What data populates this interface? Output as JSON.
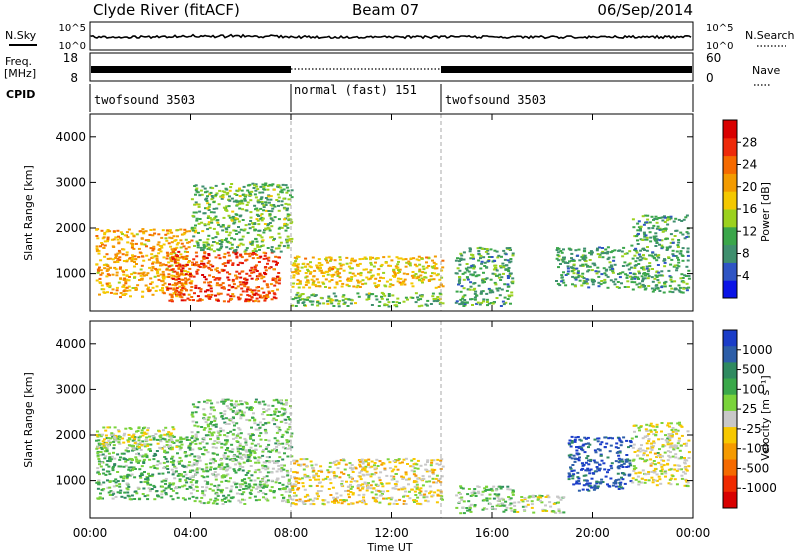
{
  "header": {
    "station": "Clyde River (fitACF)",
    "beam": "Beam 07",
    "date": "06/Sep/2014"
  },
  "top_panels": {
    "nsky_label": "N.Sky",
    "nsky_ticks": [
      "10^5",
      "10^0"
    ],
    "nsearch_label": "N.Search",
    "nsearch_ticks": [
      "10^5",
      "10^0"
    ],
    "freq_label": "Freq.",
    "freq_unit": "[MHz]",
    "freq_ticks": [
      "18",
      "8"
    ],
    "nave_label": "Nave",
    "nave_ticks": [
      "60",
      "0"
    ],
    "cpid_label": "CPID",
    "cpid_segments": [
      {
        "name": "twofsound 3503",
        "start_hour": 0,
        "end_hour": 8
      },
      {
        "name": "normal (fast) 151",
        "start_hour": 8,
        "end_hour": 14
      },
      {
        "name": "twofsound 3503",
        "start_hour": 14,
        "end_hour": 24
      }
    ]
  },
  "xaxis": {
    "label": "Time UT",
    "ticks": [
      "00:00",
      "04:00",
      "08:00",
      "12:00",
      "16:00",
      "20:00",
      "00:00"
    ]
  },
  "range_axis": {
    "label": "Slant Range [km]",
    "ticks": [
      "1000",
      "2000",
      "3000",
      "4000"
    ]
  },
  "power_scale": {
    "label": "Power [dB]",
    "ticks": [
      "4",
      "8",
      "12",
      "16",
      "20",
      "24",
      "28"
    ],
    "colors": [
      "#0a14e6",
      "#2f55c4",
      "#3f8f6e",
      "#3aa64a",
      "#9bd11e",
      "#f4c800",
      "#f39b00",
      "#f56a00",
      "#ee2a0a",
      "#d90000"
    ]
  },
  "velocity_scale": {
    "label": "Velocity [m s⁻¹]",
    "ticks": [
      "1000",
      "500",
      "100",
      "25",
      "-25",
      "-100",
      "-500",
      "-1000"
    ],
    "colors": [
      "#1b3dc8",
      "#2d5ea8",
      "#2f8a60",
      "#3aa84a",
      "#7ad33a",
      "#c8c8c8",
      "#f7c800",
      "#f59a00",
      "#f56a00",
      "#ef2a00",
      "#d80000"
    ]
  },
  "chart_data": [
    {
      "type": "heatmap",
      "title": "Power",
      "xlabel": "Time UT",
      "ylabel": "Slant Range [km]",
      "xlim": [
        0,
        24
      ],
      "ylim": [
        180,
        4500
      ],
      "colorbar": {
        "label": "Power [dB]",
        "range": [
          0,
          32
        ]
      },
      "regions": [
        {
          "t0": 0.2,
          "t1": 4.0,
          "r0": 500,
          "r1": 2000,
          "power": 20
        },
        {
          "t0": 3.0,
          "t1": 7.5,
          "r0": 400,
          "r1": 1500,
          "power": 26
        },
        {
          "t0": 4.0,
          "t1": 8.0,
          "r0": 1500,
          "r1": 3000,
          "power": 12
        },
        {
          "t0": 8.0,
          "t1": 14.0,
          "r0": 700,
          "r1": 1400,
          "power": 18
        },
        {
          "t0": 8.0,
          "t1": 14.0,
          "r0": 300,
          "r1": 600,
          "power": 12
        },
        {
          "t0": 14.5,
          "t1": 16.8,
          "r0": 300,
          "r1": 1600,
          "power": 10
        },
        {
          "t0": 18.5,
          "t1": 21.5,
          "r0": 700,
          "r1": 1600,
          "power": 10
        },
        {
          "t0": 21.5,
          "t1": 23.8,
          "r0": 600,
          "r1": 2300,
          "power": 10
        }
      ]
    },
    {
      "type": "heatmap",
      "title": "Velocity",
      "xlabel": "Time UT",
      "ylabel": "Slant Range [km]",
      "xlim": [
        0,
        24
      ],
      "ylim": [
        180,
        4500
      ],
      "colorbar": {
        "label": "Velocity [m s⁻¹]",
        "range": [
          -1000,
          1000
        ]
      },
      "regions": [
        {
          "t0": 0.2,
          "t1": 4.0,
          "r0": 600,
          "r1": 2000,
          "velocity": 300
        },
        {
          "t0": 0.2,
          "t1": 3.5,
          "r0": 1700,
          "r1": 2200,
          "velocity": 0
        },
        {
          "t0": 4.0,
          "t1": 8.0,
          "r0": 500,
          "r1": 2800,
          "velocity": 200
        },
        {
          "t0": 8.0,
          "t1": 14.0,
          "r0": 500,
          "r1": 1500,
          "velocity": -100
        },
        {
          "t0": 14.5,
          "t1": 16.8,
          "r0": 300,
          "r1": 900,
          "velocity": 200
        },
        {
          "t0": 16.8,
          "t1": 18.8,
          "r0": 300,
          "r1": 700,
          "velocity": 100
        },
        {
          "t0": 19.0,
          "t1": 21.5,
          "r0": 800,
          "r1": 2000,
          "velocity": 800
        },
        {
          "t0": 21.5,
          "t1": 23.8,
          "r0": 900,
          "r1": 2300,
          "velocity": 0
        }
      ]
    }
  ]
}
